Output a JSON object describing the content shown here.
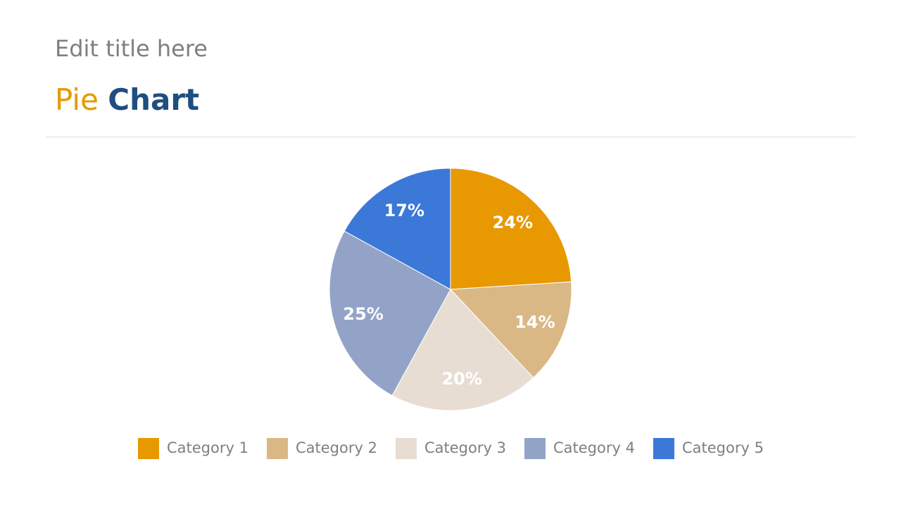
{
  "header": {
    "kicker": "Edit title here",
    "title_accent": "Pie",
    "title_main": "Chart"
  },
  "chart_data": {
    "type": "pie",
    "categories": [
      "Category 1",
      "Category 2",
      "Category 3",
      "Category 4",
      "Category 5"
    ],
    "values": [
      24,
      14,
      20,
      25,
      17
    ],
    "value_labels": [
      "24%",
      "14%",
      "20%",
      "25%",
      "17%"
    ],
    "colors": [
      "#e89800",
      "#dab886",
      "#e8ddd3",
      "#93a3c8",
      "#3c78d8"
    ],
    "legend": "bottom"
  }
}
